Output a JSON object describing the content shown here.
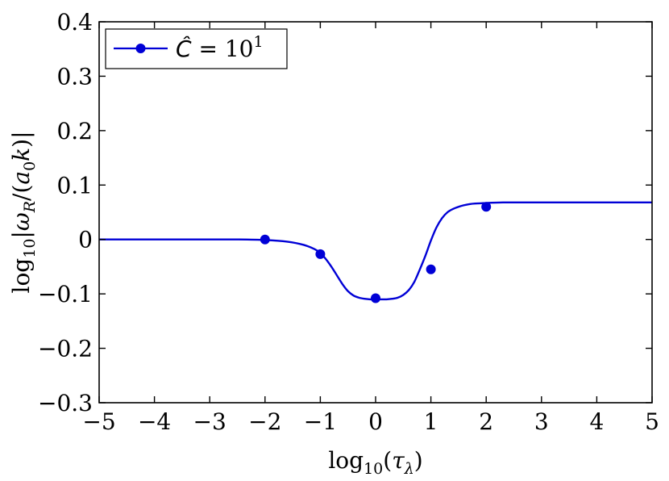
{
  "chart_data": {
    "type": "line",
    "title": "",
    "xlabel": "log₁₀(τ_λ)",
    "ylabel": "log₁₀|ω_R/(a₀k)|",
    "xlim": [
      -5,
      5
    ],
    "ylim": [
      -0.3,
      0.4
    ],
    "x_ticks": [
      -5,
      -4,
      -3,
      -2,
      -1,
      0,
      1,
      2,
      3,
      4,
      5
    ],
    "x_tick_labels": [
      "−5",
      "−4",
      "−3",
      "−2",
      "−1",
      "0",
      "1",
      "2",
      "3",
      "4",
      "5"
    ],
    "y_ticks": [
      -0.3,
      -0.2,
      -0.1,
      0,
      0.1,
      0.2,
      0.3,
      0.4
    ],
    "y_tick_labels": [
      "−0.3",
      "−0.2",
      "−0.1",
      "0",
      "0.1",
      "0.2",
      "0.3",
      "0.4"
    ],
    "grid": false,
    "legend_position": "top-left",
    "series": [
      {
        "name": "Ĉ = 10¹",
        "color": "#0000d6",
        "curve": {
          "x": [
            -5,
            -3,
            -2.5,
            -2,
            -1.6,
            -1.3,
            -1.1,
            -1.0,
            -0.9,
            -0.8,
            -0.7,
            -0.6,
            -0.5,
            -0.4,
            -0.3,
            -0.2,
            -0.1,
            0,
            0.1,
            0.2,
            0.3,
            0.4,
            0.5,
            0.6,
            0.7,
            0.8,
            0.9,
            1.0,
            1.1,
            1.2,
            1.3,
            1.4,
            1.5,
            1.6,
            1.7,
            1.8,
            2.0,
            2.3,
            2.6,
            3,
            5
          ],
          "y": [
            0,
            0,
            0,
            -0.001,
            -0.004,
            -0.01,
            -0.018,
            -0.025,
            -0.036,
            -0.05,
            -0.066,
            -0.082,
            -0.095,
            -0.103,
            -0.107,
            -0.109,
            -0.11,
            -0.11,
            -0.11,
            -0.11,
            -0.109,
            -0.107,
            -0.102,
            -0.093,
            -0.078,
            -0.055,
            -0.03,
            -0.002,
            0.022,
            0.039,
            0.05,
            0.056,
            0.06,
            0.063,
            0.065,
            0.066,
            0.067,
            0.068,
            0.068,
            0.068,
            0.068
          ]
        },
        "markers": {
          "x": [
            -2,
            -1,
            0,
            1,
            2
          ],
          "y": [
            0.0,
            -0.027,
            -0.108,
            -0.055,
            0.06
          ]
        }
      }
    ]
  }
}
